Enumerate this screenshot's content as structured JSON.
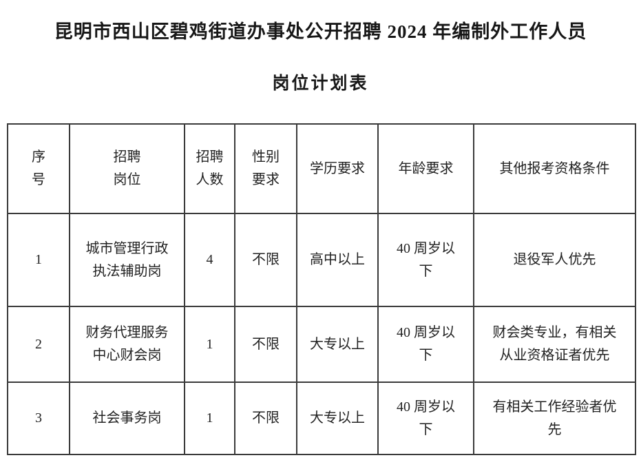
{
  "document": {
    "title": "昆明市西山区碧鸡街道办事处公开招聘 2024 年编制外工作人员",
    "subtitle": "岗位计划表"
  },
  "table": {
    "columns": [
      "序\n号",
      "招聘\n岗位",
      "招聘\n人数",
      "性别\n要求",
      "学历要求",
      "年龄要求",
      "其他报考资格条件"
    ],
    "rows": [
      [
        "1",
        "城市管理行政\n执法辅助岗",
        "4",
        "不限",
        "高中以上",
        "40 周岁以\n下",
        "退役军人优先"
      ],
      [
        "2",
        "财务代理服务\n中心财会岗",
        "1",
        "不限",
        "大专以上",
        "40 周岁以\n下",
        "财会类专业，有相关\n从业资格证者优先"
      ],
      [
        "3",
        "社会事务岗",
        "1",
        "不限",
        "大专以上",
        "40 周岁以\n下",
        "有相关工作经验者优\n先"
      ]
    ]
  },
  "colors": {
    "background": "#ffffff",
    "text": "#1f1f1f",
    "border": "#3a3a3a"
  }
}
